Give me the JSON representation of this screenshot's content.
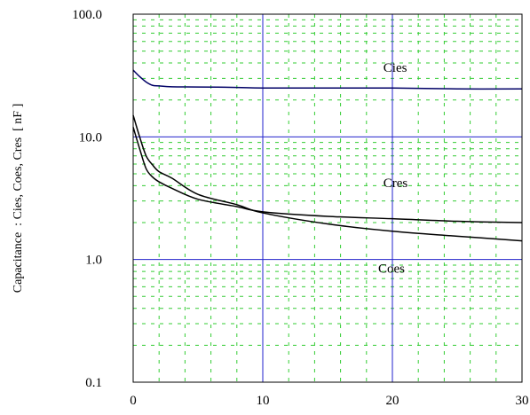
{
  "chart_data": {
    "type": "line",
    "title": "",
    "xlabel": "",
    "ylabel": "Capacitance  : Cies, Coes, Cres  [ nF ]",
    "xlim": [
      0,
      30
    ],
    "ylim": [
      0.1,
      100
    ],
    "yscale": "log",
    "grid": true,
    "minor_grid": true,
    "x_ticks": [
      0,
      10,
      20,
      30
    ],
    "x_tick_labels": [
      "0",
      "10",
      "20",
      "30"
    ],
    "y_ticks": [
      0.1,
      1,
      10,
      100
    ],
    "y_tick_labels": [
      "0.1",
      "1.0",
      "10.0",
      "100.0"
    ],
    "colors": {
      "major_grid": "#2222cc",
      "minor_grid": "#33cc33",
      "cies_line": "#000066",
      "other_lines": "#000000",
      "frame": "#000000"
    },
    "series": [
      {
        "name": "Cies",
        "x": [
          0,
          0.5,
          1,
          1.5,
          2,
          3,
          5,
          8,
          10,
          15,
          20,
          25,
          30
        ],
        "y": [
          35,
          31,
          28,
          26.3,
          26,
          25.6,
          25.5,
          25.3,
          25,
          25,
          25,
          24.6,
          24.6
        ]
      },
      {
        "name": "Cres",
        "x": [
          0,
          0.5,
          1,
          1.5,
          2,
          3,
          5,
          8,
          10,
          15,
          20,
          25,
          30
        ],
        "y": [
          12,
          8,
          5.5,
          4.7,
          4.3,
          3.8,
          3.1,
          2.7,
          2.45,
          2.25,
          2.15,
          2.05,
          2.0
        ]
      },
      {
        "name": "Coes",
        "x": [
          0,
          0.5,
          1,
          1.5,
          2,
          3,
          5,
          8,
          10,
          15,
          20,
          25,
          30
        ],
        "y": [
          15,
          10,
          7,
          5.9,
          5.2,
          4.6,
          3.4,
          2.8,
          2.4,
          1.95,
          1.7,
          1.55,
          1.42
        ]
      }
    ],
    "annotations": [
      {
        "text": "Cies",
        "series": "Cies"
      },
      {
        "text": "Cres",
        "series": "Cres"
      },
      {
        "text": "Coes",
        "series": "Coes"
      }
    ]
  }
}
